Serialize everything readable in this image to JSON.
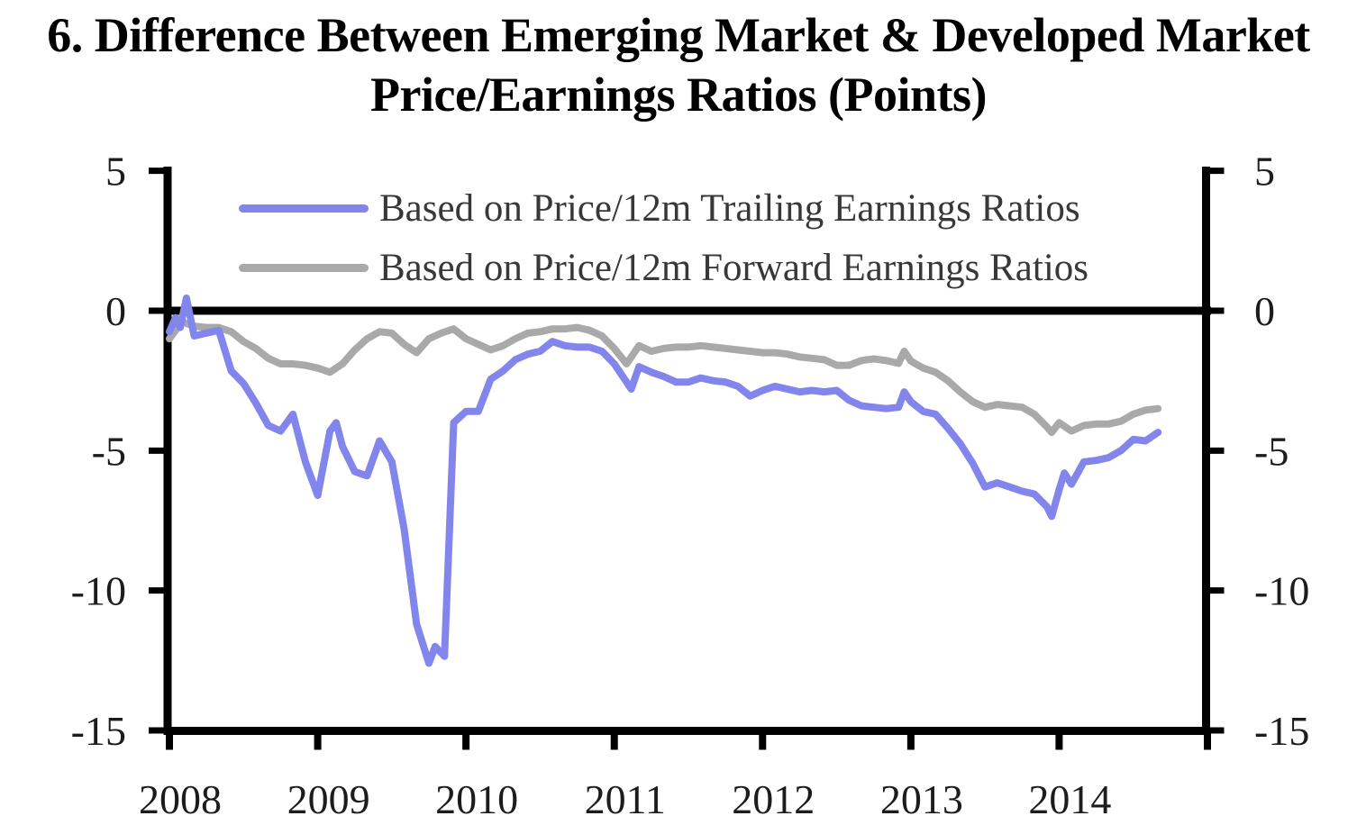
{
  "title": {
    "line1": "6. Difference Between Emerging Market & Developed Market",
    "line2": "Price/Earnings Ratios (Points)"
  },
  "legend": {
    "items": [
      {
        "id": "trailing",
        "label": "Based on Price/12m Trailing Earnings Ratios"
      },
      {
        "id": "forward",
        "label": "Based on Price/12m Forward Earnings Ratios"
      }
    ]
  },
  "chart_data": {
    "type": "line",
    "title": "6. Difference Between Emerging Market & Developed Market Price/Earnings Ratios (Points)",
    "xlabel": "",
    "ylabel": "",
    "x_unit": "decimal_year",
    "xlim": [
      2008,
      2015
    ],
    "ylim": [
      -15,
      5
    ],
    "y_ticks": [
      5,
      0,
      -5,
      -10,
      -15
    ],
    "y_tick_labels": [
      "5",
      "0",
      "-5",
      "-10",
      "-15"
    ],
    "x_ticks": [
      2008,
      2009,
      2010,
      2011,
      2012,
      2013,
      2014,
      2015
    ],
    "x_tick_labels": [
      "2008",
      "2009",
      "2010",
      "2011",
      "2012",
      "2013",
      "2014",
      ""
    ],
    "grid": false,
    "zero_line": true,
    "legend_position": "top-left-inside",
    "axis_color": "#000000",
    "tick_label_color": "#1c1c1c",
    "series": [
      {
        "id": "trailing",
        "name": "Based on Price/12m Trailing Earnings Ratios",
        "color": "#8185ec",
        "points": [
          [
            2008.0,
            -0.75
          ],
          [
            2008.042,
            -0.25
          ],
          [
            2008.073,
            -0.6
          ],
          [
            2008.115,
            0.45
          ],
          [
            2008.167,
            -0.9
          ],
          [
            2008.25,
            -0.8
          ],
          [
            2008.333,
            -0.7
          ],
          [
            2008.417,
            -2.15
          ],
          [
            2008.5,
            -2.6
          ],
          [
            2008.583,
            -3.3
          ],
          [
            2008.667,
            -4.1
          ],
          [
            2008.75,
            -4.3
          ],
          [
            2008.833,
            -3.7
          ],
          [
            2008.917,
            -5.4
          ],
          [
            2009.0,
            -6.6
          ],
          [
            2009.083,
            -4.3
          ],
          [
            2009.125,
            -4.0
          ],
          [
            2009.167,
            -4.85
          ],
          [
            2009.25,
            -5.75
          ],
          [
            2009.333,
            -5.9
          ],
          [
            2009.417,
            -4.65
          ],
          [
            2009.5,
            -5.4
          ],
          [
            2009.583,
            -7.8
          ],
          [
            2009.667,
            -11.2
          ],
          [
            2009.75,
            -12.6
          ],
          [
            2009.792,
            -12.0
          ],
          [
            2009.855,
            -12.35
          ],
          [
            2009.917,
            -4.0
          ],
          [
            2010.0,
            -3.6
          ],
          [
            2010.083,
            -3.6
          ],
          [
            2010.167,
            -2.45
          ],
          [
            2010.25,
            -2.15
          ],
          [
            2010.333,
            -1.75
          ],
          [
            2010.417,
            -1.55
          ],
          [
            2010.5,
            -1.45
          ],
          [
            2010.583,
            -1.1
          ],
          [
            2010.667,
            -1.25
          ],
          [
            2010.75,
            -1.3
          ],
          [
            2010.833,
            -1.3
          ],
          [
            2010.917,
            -1.45
          ],
          [
            2011.0,
            -1.9
          ],
          [
            2011.083,
            -2.55
          ],
          [
            2011.115,
            -2.8
          ],
          [
            2011.167,
            -2.0
          ],
          [
            2011.25,
            -2.2
          ],
          [
            2011.333,
            -2.35
          ],
          [
            2011.417,
            -2.55
          ],
          [
            2011.5,
            -2.55
          ],
          [
            2011.583,
            -2.4
          ],
          [
            2011.667,
            -2.5
          ],
          [
            2011.75,
            -2.55
          ],
          [
            2011.833,
            -2.7
          ],
          [
            2011.917,
            -3.05
          ],
          [
            2012.0,
            -2.85
          ],
          [
            2012.083,
            -2.7
          ],
          [
            2012.167,
            -2.8
          ],
          [
            2012.25,
            -2.9
          ],
          [
            2012.333,
            -2.85
          ],
          [
            2012.417,
            -2.9
          ],
          [
            2012.5,
            -2.85
          ],
          [
            2012.583,
            -3.2
          ],
          [
            2012.667,
            -3.4
          ],
          [
            2012.75,
            -3.45
          ],
          [
            2012.833,
            -3.5
          ],
          [
            2012.917,
            -3.45
          ],
          [
            2012.955,
            -2.9
          ],
          [
            2013.0,
            -3.25
          ],
          [
            2013.083,
            -3.6
          ],
          [
            2013.167,
            -3.7
          ],
          [
            2013.25,
            -4.2
          ],
          [
            2013.333,
            -4.75
          ],
          [
            2013.417,
            -5.45
          ],
          [
            2013.5,
            -6.3
          ],
          [
            2013.583,
            -6.15
          ],
          [
            2013.667,
            -6.3
          ],
          [
            2013.75,
            -6.45
          ],
          [
            2013.833,
            -6.55
          ],
          [
            2013.917,
            -7.0
          ],
          [
            2013.95,
            -7.35
          ],
          [
            2014.0,
            -6.4
          ],
          [
            2014.035,
            -5.8
          ],
          [
            2014.083,
            -6.2
          ],
          [
            2014.167,
            -5.4
          ],
          [
            2014.25,
            -5.35
          ],
          [
            2014.333,
            -5.25
          ],
          [
            2014.417,
            -5.0
          ],
          [
            2014.5,
            -4.6
          ],
          [
            2014.583,
            -4.65
          ],
          [
            2014.667,
            -4.35
          ]
        ]
      },
      {
        "id": "forward",
        "name": "Based on Price/12m Forward Earnings Ratios",
        "color": "#a9a9a9",
        "points": [
          [
            2008.0,
            -1.0
          ],
          [
            2008.083,
            -0.4
          ],
          [
            2008.167,
            -0.55
          ],
          [
            2008.25,
            -0.6
          ],
          [
            2008.333,
            -0.6
          ],
          [
            2008.417,
            -0.75
          ],
          [
            2008.5,
            -1.1
          ],
          [
            2008.583,
            -1.35
          ],
          [
            2008.667,
            -1.7
          ],
          [
            2008.75,
            -1.9
          ],
          [
            2008.833,
            -1.9
          ],
          [
            2008.917,
            -1.95
          ],
          [
            2009.0,
            -2.05
          ],
          [
            2009.083,
            -2.2
          ],
          [
            2009.167,
            -1.9
          ],
          [
            2009.25,
            -1.4
          ],
          [
            2009.333,
            -1.0
          ],
          [
            2009.417,
            -0.75
          ],
          [
            2009.5,
            -0.8
          ],
          [
            2009.583,
            -1.2
          ],
          [
            2009.667,
            -1.5
          ],
          [
            2009.75,
            -1.0
          ],
          [
            2009.833,
            -0.8
          ],
          [
            2009.917,
            -0.65
          ],
          [
            2010.0,
            -1.0
          ],
          [
            2010.083,
            -1.2
          ],
          [
            2010.167,
            -1.4
          ],
          [
            2010.25,
            -1.25
          ],
          [
            2010.333,
            -1.0
          ],
          [
            2010.417,
            -0.8
          ],
          [
            2010.5,
            -0.75
          ],
          [
            2010.583,
            -0.65
          ],
          [
            2010.667,
            -0.65
          ],
          [
            2010.75,
            -0.6
          ],
          [
            2010.833,
            -0.7
          ],
          [
            2010.917,
            -0.9
          ],
          [
            2011.0,
            -1.35
          ],
          [
            2011.083,
            -1.9
          ],
          [
            2011.167,
            -1.25
          ],
          [
            2011.25,
            -1.45
          ],
          [
            2011.333,
            -1.35
          ],
          [
            2011.417,
            -1.3
          ],
          [
            2011.5,
            -1.3
          ],
          [
            2011.583,
            -1.25
          ],
          [
            2011.667,
            -1.3
          ],
          [
            2011.75,
            -1.35
          ],
          [
            2011.833,
            -1.4
          ],
          [
            2011.917,
            -1.45
          ],
          [
            2012.0,
            -1.5
          ],
          [
            2012.083,
            -1.5
          ],
          [
            2012.167,
            -1.55
          ],
          [
            2012.25,
            -1.65
          ],
          [
            2012.333,
            -1.7
          ],
          [
            2012.417,
            -1.75
          ],
          [
            2012.5,
            -1.95
          ],
          [
            2012.583,
            -1.95
          ],
          [
            2012.667,
            -1.78
          ],
          [
            2012.75,
            -1.72
          ],
          [
            2012.833,
            -1.78
          ],
          [
            2012.917,
            -1.88
          ],
          [
            2012.955,
            -1.45
          ],
          [
            2013.0,
            -1.8
          ],
          [
            2013.083,
            -2.05
          ],
          [
            2013.167,
            -2.2
          ],
          [
            2013.25,
            -2.5
          ],
          [
            2013.333,
            -2.9
          ],
          [
            2013.417,
            -3.25
          ],
          [
            2013.5,
            -3.45
          ],
          [
            2013.583,
            -3.35
          ],
          [
            2013.667,
            -3.4
          ],
          [
            2013.75,
            -3.45
          ],
          [
            2013.833,
            -3.7
          ],
          [
            2013.917,
            -4.15
          ],
          [
            2013.95,
            -4.35
          ],
          [
            2014.0,
            -4.0
          ],
          [
            2014.083,
            -4.3
          ],
          [
            2014.167,
            -4.1
          ],
          [
            2014.25,
            -4.05
          ],
          [
            2014.333,
            -4.05
          ],
          [
            2014.417,
            -3.95
          ],
          [
            2014.5,
            -3.7
          ],
          [
            2014.583,
            -3.55
          ],
          [
            2014.667,
            -3.5
          ]
        ]
      }
    ]
  }
}
